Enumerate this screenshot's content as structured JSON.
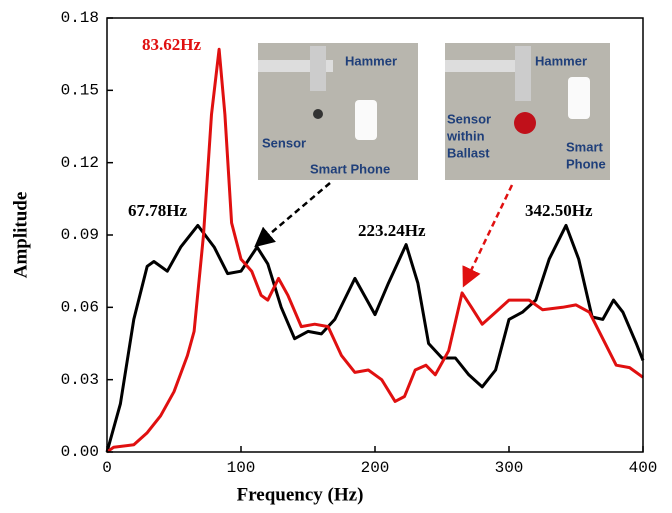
{
  "chart_data": {
    "type": "line",
    "x_label": "Frequency (Hz)",
    "y_label": "Amplitude",
    "xlim": [
      0,
      400
    ],
    "xticks": [
      0,
      100,
      200,
      300,
      400
    ],
    "ylim": [
      0,
      0.18
    ],
    "yticks": [
      {
        "value": 0,
        "label": "0.00"
      },
      {
        "value": 0.03,
        "label": "0.03"
      },
      {
        "value": 0.06,
        "label": "0.06"
      },
      {
        "value": 0.09,
        "label": "0.09"
      },
      {
        "value": 0.12,
        "label": "0.12"
      },
      {
        "value": 0.15,
        "label": "0.15"
      },
      {
        "value": 0.18,
        "label": "0.18"
      }
    ],
    "series": [
      {
        "color": "#000000",
        "x": [
          0,
          10,
          20,
          30,
          35,
          45,
          55,
          67.78,
          80,
          90,
          100,
          112,
          120,
          130,
          140,
          150,
          160,
          170,
          185,
          195,
          200,
          210,
          223.24,
          232,
          240,
          250,
          260,
          270,
          280,
          290,
          300,
          310,
          320,
          330,
          342.5,
          352,
          362,
          370,
          378,
          385,
          395,
          400
        ],
        "values": [
          0,
          0.02,
          0.055,
          0.077,
          0.079,
          0.075,
          0.085,
          0.094,
          0.085,
          0.074,
          0.075,
          0.085,
          0.078,
          0.06,
          0.047,
          0.05,
          0.049,
          0.055,
          0.072,
          0.062,
          0.057,
          0.07,
          0.086,
          0.07,
          0.045,
          0.039,
          0.039,
          0.032,
          0.027,
          0.034,
          0.055,
          0.058,
          0.063,
          0.08,
          0.094,
          0.08,
          0.056,
          0.055,
          0.063,
          0.058,
          0.045,
          0.038
        ]
      },
      {
        "color": "#e01010",
        "x": [
          0,
          5,
          20,
          30,
          40,
          50,
          60,
          65,
          72,
          78,
          83.62,
          88,
          93,
          100,
          108,
          115,
          120,
          128,
          135,
          145,
          155,
          165,
          175,
          185,
          195,
          205,
          215,
          222,
          230,
          238,
          245,
          255,
          265,
          272,
          280,
          290,
          300,
          315,
          325,
          340,
          350,
          360,
          370,
          380,
          390,
          400
        ],
        "values": [
          0,
          0.002,
          0.003,
          0.008,
          0.015,
          0.025,
          0.04,
          0.05,
          0.09,
          0.14,
          0.167,
          0.14,
          0.095,
          0.08,
          0.075,
          0.065,
          0.063,
          0.072,
          0.065,
          0.052,
          0.053,
          0.052,
          0.04,
          0.033,
          0.034,
          0.03,
          0.021,
          0.023,
          0.034,
          0.036,
          0.032,
          0.042,
          0.066,
          0.06,
          0.053,
          0.058,
          0.063,
          0.063,
          0.059,
          0.06,
          0.061,
          0.058,
          0.047,
          0.036,
          0.035,
          0.031
        ]
      }
    ],
    "annotations": [
      "83.62Hz",
      "67.78Hz",
      "223.24Hz",
      "342.50Hz"
    ],
    "inset_left": {
      "hammer": "Hammer",
      "sensor": "Sensor",
      "phone": "Smart Phone"
    },
    "inset_right": {
      "hammer": "Hammer",
      "sensor": [
        "Sensor",
        "within",
        "Ballast"
      ],
      "phone": [
        "Smart",
        "Phone"
      ]
    }
  }
}
